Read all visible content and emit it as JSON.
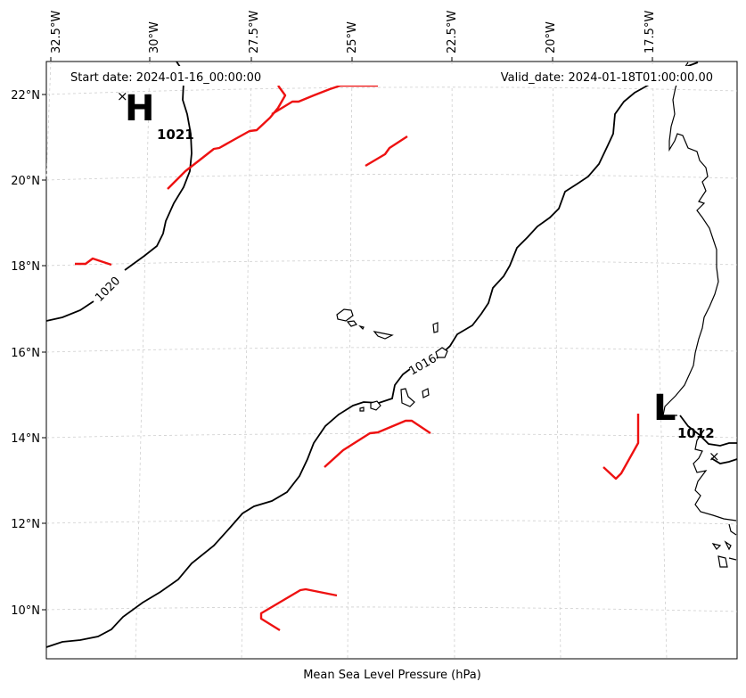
{
  "map": {
    "start_date_label": "Start date: 2024-01-16_00:00:00",
    "valid_date_label": "Valid_date: 2024-01-18T01:00:00.00",
    "xlabel": "Mean Sea Level Pressure (hPa)",
    "lon_ticks": [
      "32.5°W",
      "30°W",
      "27.5°W",
      "25°W",
      "22.5°W",
      "20°W",
      "17.5°W"
    ],
    "lat_ticks": [
      "22°N",
      "20°N",
      "18°N",
      "16°N",
      "14°N",
      "12°N",
      "10°N"
    ],
    "high": {
      "letter": "H",
      "pressure": "1021"
    },
    "low": {
      "letter": "L",
      "pressure": "1012"
    },
    "isobars": [
      {
        "label": "1020"
      },
      {
        "label": "1016"
      }
    ],
    "colors": {
      "isobar": "#000000",
      "front": "#ee1111",
      "coast": "#000000",
      "grid": "#cccccc"
    }
  }
}
